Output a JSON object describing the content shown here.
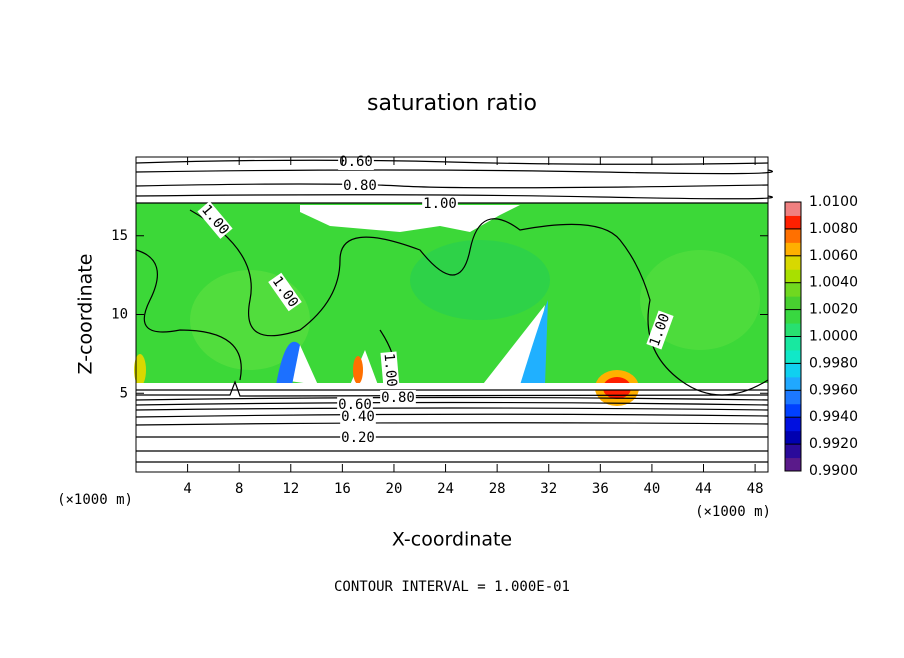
{
  "chart_data": {
    "type": "contour",
    "title": "saturation ratio",
    "x_label": "X-coordinate",
    "y_label": "Z-coordinate",
    "x_unit": "(×1000 m)",
    "footer": "CONTOUR INTERVAL = 1.000E-01",
    "xlim": [
      0,
      49
    ],
    "ylim": [
      0,
      20
    ],
    "xticks": [
      4,
      8,
      12,
      16,
      20,
      24,
      28,
      32,
      36,
      40,
      44,
      48
    ],
    "yticks": [
      5,
      10,
      15
    ],
    "colorbar": {
      "lim": [
        0.99,
        1.01
      ],
      "ticks": [
        {
          "value": 0.99,
          "label": "0.9900"
        },
        {
          "value": 0.992,
          "label": "0.9920"
        },
        {
          "value": 0.994,
          "label": "0.9940"
        },
        {
          "value": 0.996,
          "label": "0.9960"
        },
        {
          "value": 0.998,
          "label": "0.9980"
        },
        {
          "value": 1.0,
          "label": "1.0000"
        },
        {
          "value": 1.002,
          "label": "1.0020"
        },
        {
          "value": 1.004,
          "label": "1.0040"
        },
        {
          "value": 1.006,
          "label": "1.0060"
        },
        {
          "value": 1.008,
          "label": "1.0080"
        },
        {
          "value": 1.01,
          "label": "1.0100"
        }
      ],
      "colors": [
        "#5a1a8a",
        "#2a0a9a",
        "#0000b0",
        "#0010e0",
        "#0040ff",
        "#1c78ff",
        "#20a8ff",
        "#10d0f0",
        "#10e8c8",
        "#18e8a0",
        "#28e070",
        "#38d840",
        "#48d030",
        "#70d820",
        "#a8e000",
        "#d8d800",
        "#ffb000",
        "#ff7000",
        "#ff2000",
        "#f08080"
      ]
    },
    "contour_labels": [
      {
        "value": 0.6,
        "label": "0.60"
      },
      {
        "value": 0.8,
        "label": "0.80"
      },
      {
        "value": 1.0,
        "label": "1.00"
      },
      {
        "value": 1.0,
        "label": "1.00"
      },
      {
        "value": 1.0,
        "label": "1.00"
      },
      {
        "value": 1.0,
        "label": "1.00"
      },
      {
        "value": 1.0,
        "label": "1.00"
      },
      {
        "value": 0.8,
        "label": "0.80"
      },
      {
        "value": 0.6,
        "label": "0.60"
      },
      {
        "value": 0.4,
        "label": "0.40"
      },
      {
        "value": 0.2,
        "label": "0.20"
      }
    ]
  }
}
